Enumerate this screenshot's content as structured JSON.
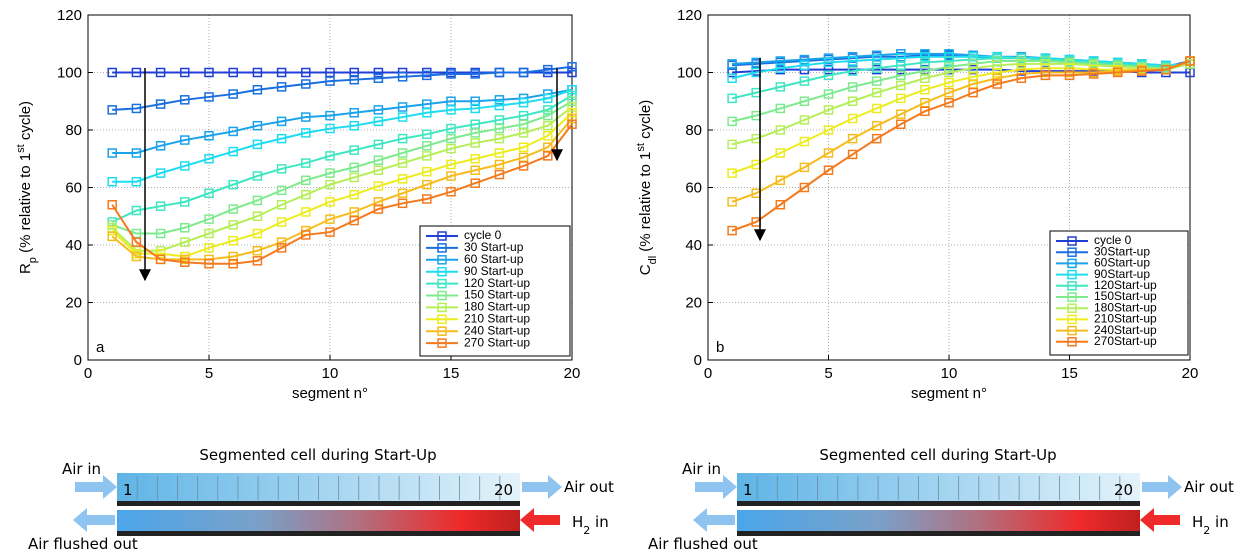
{
  "chart_data": [
    {
      "type": "line",
      "x_label": "segment n°",
      "y_label": [
        "R",
        "p",
        " (% relative to 1",
        "st",
        " cycle)"
      ],
      "annotation": "a",
      "x": [
        1,
        2,
        3,
        4,
        5,
        6,
        7,
        8,
        9,
        10,
        11,
        12,
        13,
        14,
        15,
        16,
        17,
        18,
        19,
        20
      ],
      "xlim": [
        0,
        20
      ],
      "xticks": [
        0,
        5,
        10,
        15,
        20
      ],
      "ylim": [
        0,
        120
      ],
      "yticks": [
        0,
        20,
        40,
        60,
        80,
        100,
        120
      ],
      "grid": true,
      "legend": "lower right",
      "series": [
        {
          "name": "cycle 0",
          "color": "#1f3fd6",
          "values": [
            100,
            100,
            100,
            100,
            100,
            100,
            100,
            100,
            100,
            100,
            100,
            100,
            100,
            100,
            100,
            100,
            100,
            100,
            100,
            100
          ]
        },
        {
          "name": "30 Start-up",
          "color": "#1a6fe0",
          "values": [
            87,
            87.5,
            89,
            90.5,
            91.5,
            92.5,
            94,
            95,
            96,
            97,
            97.5,
            98,
            98.5,
            99,
            99.5,
            99.5,
            100,
            100,
            101,
            102
          ]
        },
        {
          "name": "60 Start-up",
          "color": "#1aa2ea",
          "values": [
            72,
            72,
            74.5,
            76.5,
            78,
            79.5,
            81.5,
            83,
            84.5,
            85,
            86,
            87,
            88,
            89,
            90,
            90,
            90.5,
            91,
            92.5,
            94
          ]
        },
        {
          "name": "90 Start-up",
          "color": "#1edcf0",
          "values": [
            62,
            62,
            65,
            67.5,
            70,
            72.5,
            75,
            77,
            79,
            80.5,
            81.5,
            83,
            84.5,
            86,
            87,
            87.5,
            88.5,
            89.5,
            91,
            94
          ]
        },
        {
          "name": "120 Start-up",
          "color": "#3ee6c2",
          "values": [
            48,
            52,
            53.5,
            55,
            58,
            61,
            64,
            66.5,
            68.5,
            71,
            73,
            75,
            77,
            78.5,
            80.5,
            82,
            83.5,
            85,
            87,
            92
          ]
        },
        {
          "name": "150 Start-up",
          "color": "#7eea8e",
          "values": [
            47,
            44,
            44,
            46,
            49,
            52.5,
            55.5,
            59,
            62.5,
            65,
            67,
            69.5,
            72,
            74.5,
            77,
            79,
            80.5,
            82,
            85,
            90
          ]
        },
        {
          "name": "180 Start-up",
          "color": "#b6ee5a",
          "values": [
            46,
            38,
            38,
            41,
            44,
            47,
            50,
            54,
            57.5,
            61,
            63.5,
            66,
            68.5,
            71,
            73.5,
            75.5,
            77,
            79,
            81.5,
            88
          ]
        },
        {
          "name": "210 Start-up",
          "color": "#ecec1e",
          "values": [
            45,
            37,
            37,
            36,
            39,
            41.5,
            44,
            48,
            51.5,
            55,
            57.5,
            60.5,
            63,
            65.5,
            68,
            70,
            72,
            74,
            78,
            86
          ]
        },
        {
          "name": "240 Start-up",
          "color": "#f6bc1e",
          "values": [
            43,
            36,
            35,
            35,
            35,
            36,
            38,
            41,
            45,
            49,
            51.5,
            55,
            58,
            61,
            64,
            66,
            68,
            70.5,
            74,
            84
          ]
        },
        {
          "name": "270 Start-up",
          "color": "#f47a1e",
          "values": [
            54,
            41,
            35,
            34,
            33.5,
            33.5,
            34.5,
            39,
            43.5,
            44.5,
            48.5,
            52.5,
            54.5,
            56,
            58.5,
            61.5,
            64.5,
            67.5,
            71,
            82
          ]
        }
      ]
    },
    {
      "type": "line",
      "x_label": "segment n°",
      "y_label": [
        "C",
        "dl",
        " (% relative to 1",
        "st",
        " cycle)"
      ],
      "annotation": "b",
      "x": [
        1,
        2,
        3,
        4,
        5,
        6,
        7,
        8,
        9,
        10,
        11,
        12,
        13,
        14,
        15,
        16,
        17,
        18,
        19,
        20
      ],
      "xlim": [
        0,
        20
      ],
      "xticks": [
        0,
        5,
        10,
        15,
        20
      ],
      "ylim": [
        0,
        120
      ],
      "yticks": [
        0,
        20,
        40,
        60,
        80,
        100,
        120
      ],
      "grid": true,
      "legend": "lower right",
      "series": [
        {
          "name": "cycle 0",
          "color": "#1f3fd6",
          "values": [
            100,
            100.5,
            101,
            101,
            101,
            101,
            101,
            101,
            101,
            101,
            101,
            101,
            100.5,
            100.5,
            100.5,
            100.5,
            100.5,
            100,
            100,
            100
          ]
        },
        {
          "name": "30Start-up",
          "color": "#1a6fe0",
          "values": [
            102.5,
            103,
            103.5,
            104,
            104.5,
            105,
            105.5,
            105.5,
            106,
            106,
            105.5,
            105,
            105,
            104.5,
            104,
            103.5,
            103,
            102.5,
            102,
            104
          ]
        },
        {
          "name": "60Start-up",
          "color": "#1aa2ea",
          "values": [
            103,
            103.5,
            104,
            104.5,
            105,
            105.5,
            106,
            106.5,
            106.5,
            106.5,
            106,
            105.5,
            105.5,
            105,
            104.5,
            104,
            103.5,
            103,
            102.5,
            103
          ]
        },
        {
          "name": "90Start-up",
          "color": "#1edcf0",
          "values": [
            98,
            100,
            101.5,
            102.5,
            103.5,
            104,
            104.5,
            105,
            105.5,
            105.5,
            105.5,
            105.5,
            105,
            105,
            104.5,
            104,
            103.5,
            103,
            102.5,
            103
          ]
        },
        {
          "name": "120Start-up",
          "color": "#3ee6c2",
          "values": [
            91,
            93,
            95,
            97,
            99,
            100.5,
            101.5,
            102.5,
            103.5,
            104,
            104.5,
            105,
            105,
            104.5,
            104,
            103.5,
            103,
            102.5,
            102,
            103
          ]
        },
        {
          "name": "150Start-up",
          "color": "#7eea8e",
          "values": [
            83,
            85,
            87.5,
            90,
            92.5,
            95,
            97,
            99,
            100.5,
            102,
            103,
            104,
            104,
            104,
            103.5,
            103,
            102.5,
            102,
            101.5,
            103
          ]
        },
        {
          "name": "180Start-up",
          "color": "#b6ee5a",
          "values": [
            75,
            77,
            80,
            83.5,
            87,
            90,
            93,
            95.5,
            98,
            100,
            101.5,
            102.5,
            103,
            103,
            103,
            102.5,
            102,
            101.5,
            101,
            103
          ]
        },
        {
          "name": "210Start-up",
          "color": "#ecec1e",
          "values": [
            65,
            68,
            72,
            76,
            80,
            84,
            87.5,
            91,
            94,
            96.5,
            98.5,
            100,
            101,
            101.5,
            101.5,
            101,
            101,
            101,
            101,
            104
          ]
        },
        {
          "name": "240Start-up",
          "color": "#f6bc1e",
          "values": [
            55,
            58,
            62.5,
            67,
            72,
            77,
            81.5,
            85.5,
            89.5,
            93,
            96,
            98,
            99.5,
            100,
            100,
            100,
            100.5,
            101,
            101,
            104
          ]
        },
        {
          "name": "270Start-up",
          "color": "#f47a1e",
          "values": [
            45,
            48,
            54,
            60,
            66,
            71.5,
            77,
            82,
            86.5,
            89.5,
            93,
            96,
            98,
            99,
            99,
            99.5,
            100,
            100.5,
            101,
            104
          ]
        }
      ]
    }
  ],
  "diagrams": [
    {
      "title": "Segmented cell during Start-Up",
      "air_in": "Air in",
      "first": "1",
      "last": "20",
      "air_out": "Air out",
      "air_flushed": "Air flushed out",
      "h2_in": [
        "H",
        "2",
        " in"
      ]
    },
    {
      "title": "Segmented cell during Start-Up",
      "air_in": "Air in",
      "first": "1",
      "last": "20",
      "air_out": "Air out",
      "air_flushed": "Air flushed out",
      "h2_in": [
        "H",
        "2",
        " in"
      ]
    }
  ]
}
